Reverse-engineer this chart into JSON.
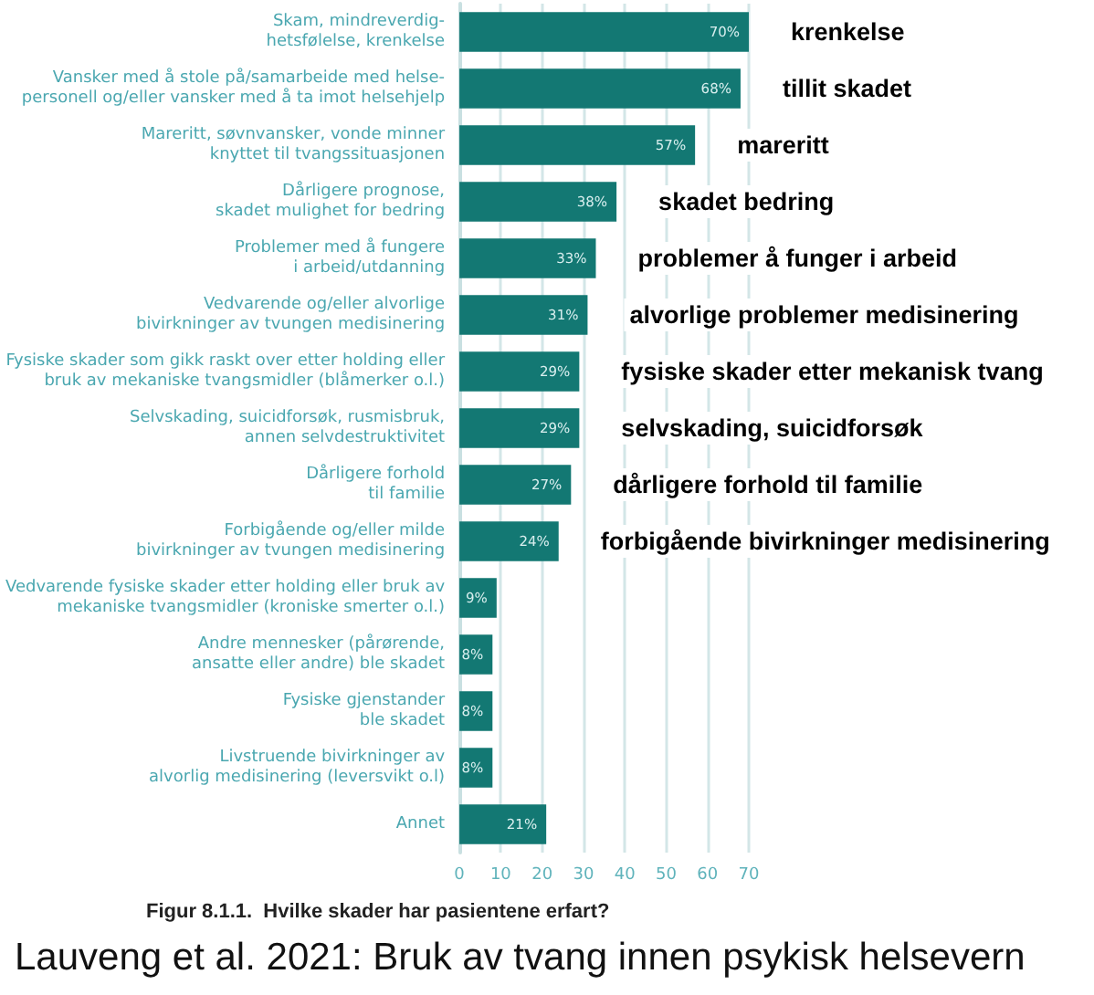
{
  "chart_data": {
    "type": "bar",
    "orientation": "horizontal",
    "title": "Figur 8.1.1.  Hvilke skader har pasientene erfart?",
    "categories": [
      "Skam, mindreverdig-\nhetsfølelse, krenkelse",
      "Vansker med å stole på/samarbeide med helse-\npersonell og/eller vansker med å ta imot helsehjelp",
      "Mareritt, søvnvansker, vonde minner\nknyttet til tvangssituasjonen",
      "Dårligere prognose,\nskadet mulighet for bedring",
      "Problemer med å fungere\ni arbeid/utdanning",
      "Vedvarende og/eller alvorlige\nbivirkninger av tvungen medisinering",
      "Fysiske skader som gikk raskt over etter holding eller\nbruk av mekaniske tvangsmidler (blåmerker o.l.)",
      "Selvskading, suicidforsøk, rusmisbruk,\nannen selvdestruktivitet",
      "Dårligere forhold\ntil familie",
      "Forbigående og/eller milde\nbivirkninger av tvungen medisinering",
      "Vedvarende fysiske skader etter holding eller bruk av\nmekaniske tvangsmidler (kroniske smerter o.l.)",
      "Andre mennesker (pårørende,\nansatte eller andre) ble skadet",
      "Fysiske gjenstander\nble skadet",
      "Livstruende bivirkninger av\nalvorlig medisinering (leversvikt o.l)",
      "Annet"
    ],
    "values": [
      70,
      68,
      57,
      38,
      33,
      31,
      29,
      29,
      27,
      24,
      9,
      8,
      8,
      8,
      21
    ],
    "value_labels": [
      "70%",
      "68%",
      "57%",
      "38%",
      "33%",
      "31%",
      "29%",
      "29%",
      "27%",
      "24%",
      "9%",
      "8%",
      "8%",
      "8%",
      "21%"
    ],
    "color": "#137873",
    "xlim": [
      0,
      70
    ],
    "xticks": [
      0,
      10,
      20,
      30,
      40,
      50,
      60,
      70
    ],
    "grid": "x",
    "annotations": [
      "krenkelse",
      "tillit skadet",
      "mareritt",
      "skadet bedring",
      "problemer å funger i arbeid",
      "alvorlige problemer medisinering",
      "fysiske skader etter mekanisk tvang",
      "selvskading, suicidforsøk",
      "dårligere forhold til familie",
      "forbigående bivirkninger medisinering",
      "Lauveng et al. 2021: Bruk av tvang innen psykisk helsevern"
    ]
  }
}
